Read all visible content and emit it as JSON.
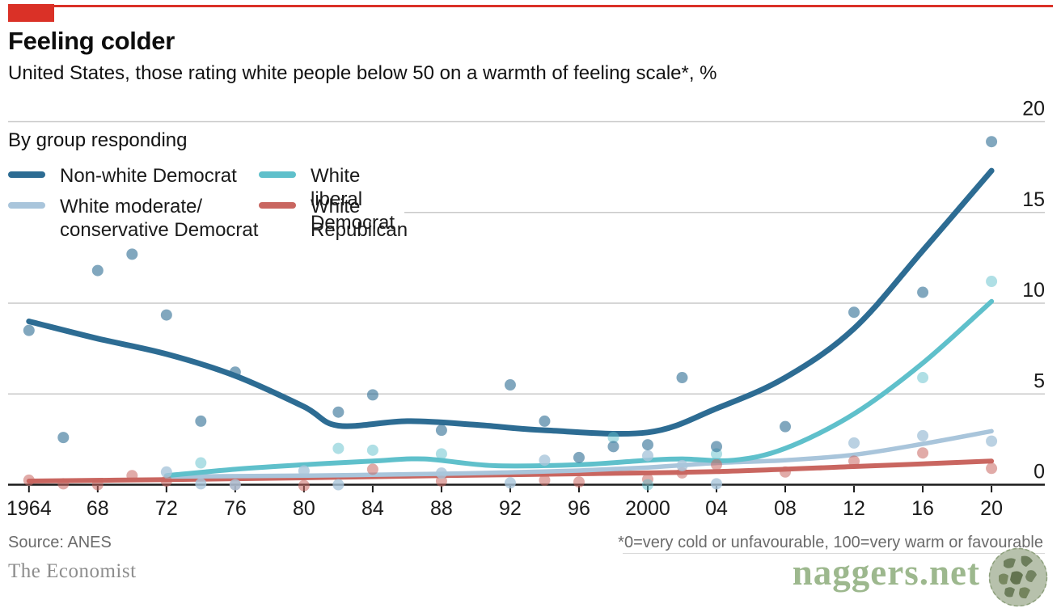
{
  "header": {
    "title": "Feeling colder",
    "subtitle": "United States, those rating white people below 50 on a warmth of feeling scale*, %"
  },
  "chart_data": {
    "type": "scatter",
    "group_label": "By group responding",
    "x_axis": {
      "range_years": [
        1964,
        2020
      ],
      "ticks": [
        {
          "year": 1964,
          "label": "1964"
        },
        {
          "year": 1968,
          "label": "68"
        },
        {
          "year": 1972,
          "label": "72"
        },
        {
          "year": 1976,
          "label": "76"
        },
        {
          "year": 1980,
          "label": "80"
        },
        {
          "year": 1984,
          "label": "84"
        },
        {
          "year": 1988,
          "label": "88"
        },
        {
          "year": 1992,
          "label": "92"
        },
        {
          "year": 1996,
          "label": "96"
        },
        {
          "year": 2000,
          "label": "2000"
        },
        {
          "year": 2004,
          "label": "04"
        },
        {
          "year": 2008,
          "label": "08"
        },
        {
          "year": 2012,
          "label": "12"
        },
        {
          "year": 2016,
          "label": "16"
        },
        {
          "year": 2020,
          "label": "20"
        }
      ]
    },
    "y_axis": {
      "ticks": [
        0,
        5,
        10,
        15,
        20
      ],
      "range": [
        0,
        20
      ],
      "side": "right"
    },
    "series": [
      {
        "id": "white-republican",
        "name": "White Republican",
        "color": "#c96660",
        "stroke_width": 6,
        "dot_opacity": 0.55,
        "line": [
          [
            1964,
            0.2
          ],
          [
            1972,
            0.28
          ],
          [
            1980,
            0.38
          ],
          [
            1988,
            0.5
          ],
          [
            1996,
            0.6
          ],
          [
            2004,
            0.72
          ],
          [
            2012,
            1.0
          ],
          [
            2020,
            1.3
          ]
        ],
        "points": [
          [
            1964,
            0.25
          ],
          [
            1966,
            0.05
          ],
          [
            1968,
            0.0
          ],
          [
            1970,
            0.5
          ],
          [
            1972,
            0.2
          ],
          [
            1976,
            0.0
          ],
          [
            1980,
            -0.05
          ],
          [
            1984,
            0.85
          ],
          [
            1988,
            0.2
          ],
          [
            1994,
            0.25
          ],
          [
            1996,
            0.15
          ],
          [
            2000,
            0.3
          ],
          [
            2002,
            0.65
          ],
          [
            2004,
            1.1
          ],
          [
            2008,
            0.7
          ],
          [
            2012,
            1.3
          ],
          [
            2016,
            1.75
          ],
          [
            2020,
            0.9
          ]
        ]
      },
      {
        "id": "white-moderate-conservative-democrat",
        "name": "White moderate/conservative Democrat",
        "color": "#a9c5db",
        "stroke_width": 5.5,
        "dot_opacity": 0.8,
        "line": [
          [
            1972,
            0.45
          ],
          [
            1980,
            0.5
          ],
          [
            1988,
            0.6
          ],
          [
            1992,
            0.68
          ],
          [
            1996,
            0.78
          ],
          [
            2000,
            0.95
          ],
          [
            2004,
            1.2
          ],
          [
            2008,
            1.35
          ],
          [
            2012,
            1.65
          ],
          [
            2016,
            2.25
          ],
          [
            2020,
            2.95
          ]
        ],
        "points": [
          [
            1972,
            0.7
          ],
          [
            1974,
            0.05
          ],
          [
            1976,
            0.0
          ],
          [
            1980,
            0.76
          ],
          [
            1982,
            0.0
          ],
          [
            1988,
            0.64
          ],
          [
            1992,
            0.1
          ],
          [
            1994,
            1.35
          ],
          [
            2000,
            1.6
          ],
          [
            2002,
            1.05
          ],
          [
            2004,
            0.05
          ],
          [
            2012,
            2.3
          ],
          [
            2016,
            2.7
          ],
          [
            2020,
            2.4
          ]
        ]
      },
      {
        "id": "white-liberal-democrat",
        "name": "White liberal Democrat",
        "color": "#5fc0cb",
        "stroke_width": 6,
        "dot_opacity": 0.5,
        "line": [
          [
            1972,
            0.5
          ],
          [
            1976,
            0.85
          ],
          [
            1980,
            1.1
          ],
          [
            1984,
            1.3
          ],
          [
            1987,
            1.42
          ],
          [
            1991,
            1.05
          ],
          [
            1996,
            1.1
          ],
          [
            2000,
            1.35
          ],
          [
            2002,
            1.42
          ],
          [
            2005,
            1.35
          ],
          [
            2008,
            2.0
          ],
          [
            2012,
            3.9
          ],
          [
            2016,
            6.7
          ],
          [
            2020,
            10.1
          ]
        ],
        "points": [
          [
            1974,
            1.2
          ],
          [
            1982,
            2.0
          ],
          [
            1984,
            1.9
          ],
          [
            1988,
            1.7
          ],
          [
            1998,
            2.6
          ],
          [
            2000,
            0.0
          ],
          [
            2004,
            1.7
          ],
          [
            2016,
            5.9
          ],
          [
            2020,
            11.2
          ]
        ]
      },
      {
        "id": "non-white-democrat",
        "name": "Non-white Democrat",
        "color": "#2d6c93",
        "stroke_width": 7,
        "dot_opacity": 0.6,
        "line": [
          [
            1964,
            9.0
          ],
          [
            1968,
            8.05
          ],
          [
            1972,
            7.2
          ],
          [
            1976,
            6.0
          ],
          [
            1980,
            4.3
          ],
          [
            1982,
            3.25
          ],
          [
            1986,
            3.5
          ],
          [
            1990,
            3.3
          ],
          [
            1994,
            3.0
          ],
          [
            2000,
            2.88
          ],
          [
            2004,
            4.2
          ],
          [
            2008,
            5.9
          ],
          [
            2012,
            8.6
          ],
          [
            2016,
            12.9
          ],
          [
            2020,
            17.3
          ]
        ],
        "points": [
          [
            1964,
            8.5
          ],
          [
            1966,
            2.6
          ],
          [
            1968,
            11.8
          ],
          [
            1970,
            12.7
          ],
          [
            1972,
            9.35
          ],
          [
            1974,
            3.5
          ],
          [
            1976,
            6.2
          ],
          [
            1982,
            4.0
          ],
          [
            1984,
            4.95
          ],
          [
            1988,
            3.0
          ],
          [
            1992,
            5.5
          ],
          [
            1994,
            3.5
          ],
          [
            1996,
            1.5
          ],
          [
            1998,
            2.1
          ],
          [
            2000,
            2.2
          ],
          [
            2002,
            5.9
          ],
          [
            2004,
            2.1
          ],
          [
            2008,
            3.2
          ],
          [
            2012,
            9.5
          ],
          [
            2016,
            10.6
          ],
          [
            2020,
            18.9
          ]
        ]
      }
    ]
  },
  "legend": {
    "items": [
      {
        "id": "non-white-democrat",
        "line1": "Non-white Democrat",
        "line2": "",
        "color": "#2d6c93"
      },
      {
        "id": "white-liberal-democrat",
        "line1": "White liberal Democrat",
        "line2": "",
        "color": "#5fc0cb"
      },
      {
        "id": "white-moderate-conservative-democrat",
        "line1": "White moderate/",
        "line2": "conservative Democrat",
        "color": "#a9c5db"
      },
      {
        "id": "white-republican",
        "line1": "White Republican",
        "line2": "",
        "color": "#c96660"
      }
    ]
  },
  "footer": {
    "source": "Source: ANES",
    "footnote": "*0=very cold or unfavourable, 100=very warm or favourable",
    "brand": "The Economist"
  },
  "watermark": {
    "text": "naggers.net"
  },
  "colors": {
    "accent_red": "#da3127",
    "gridline": "#c9c9c9",
    "axis": "#1a1a1a",
    "tick_label": "#1a1a1a"
  }
}
